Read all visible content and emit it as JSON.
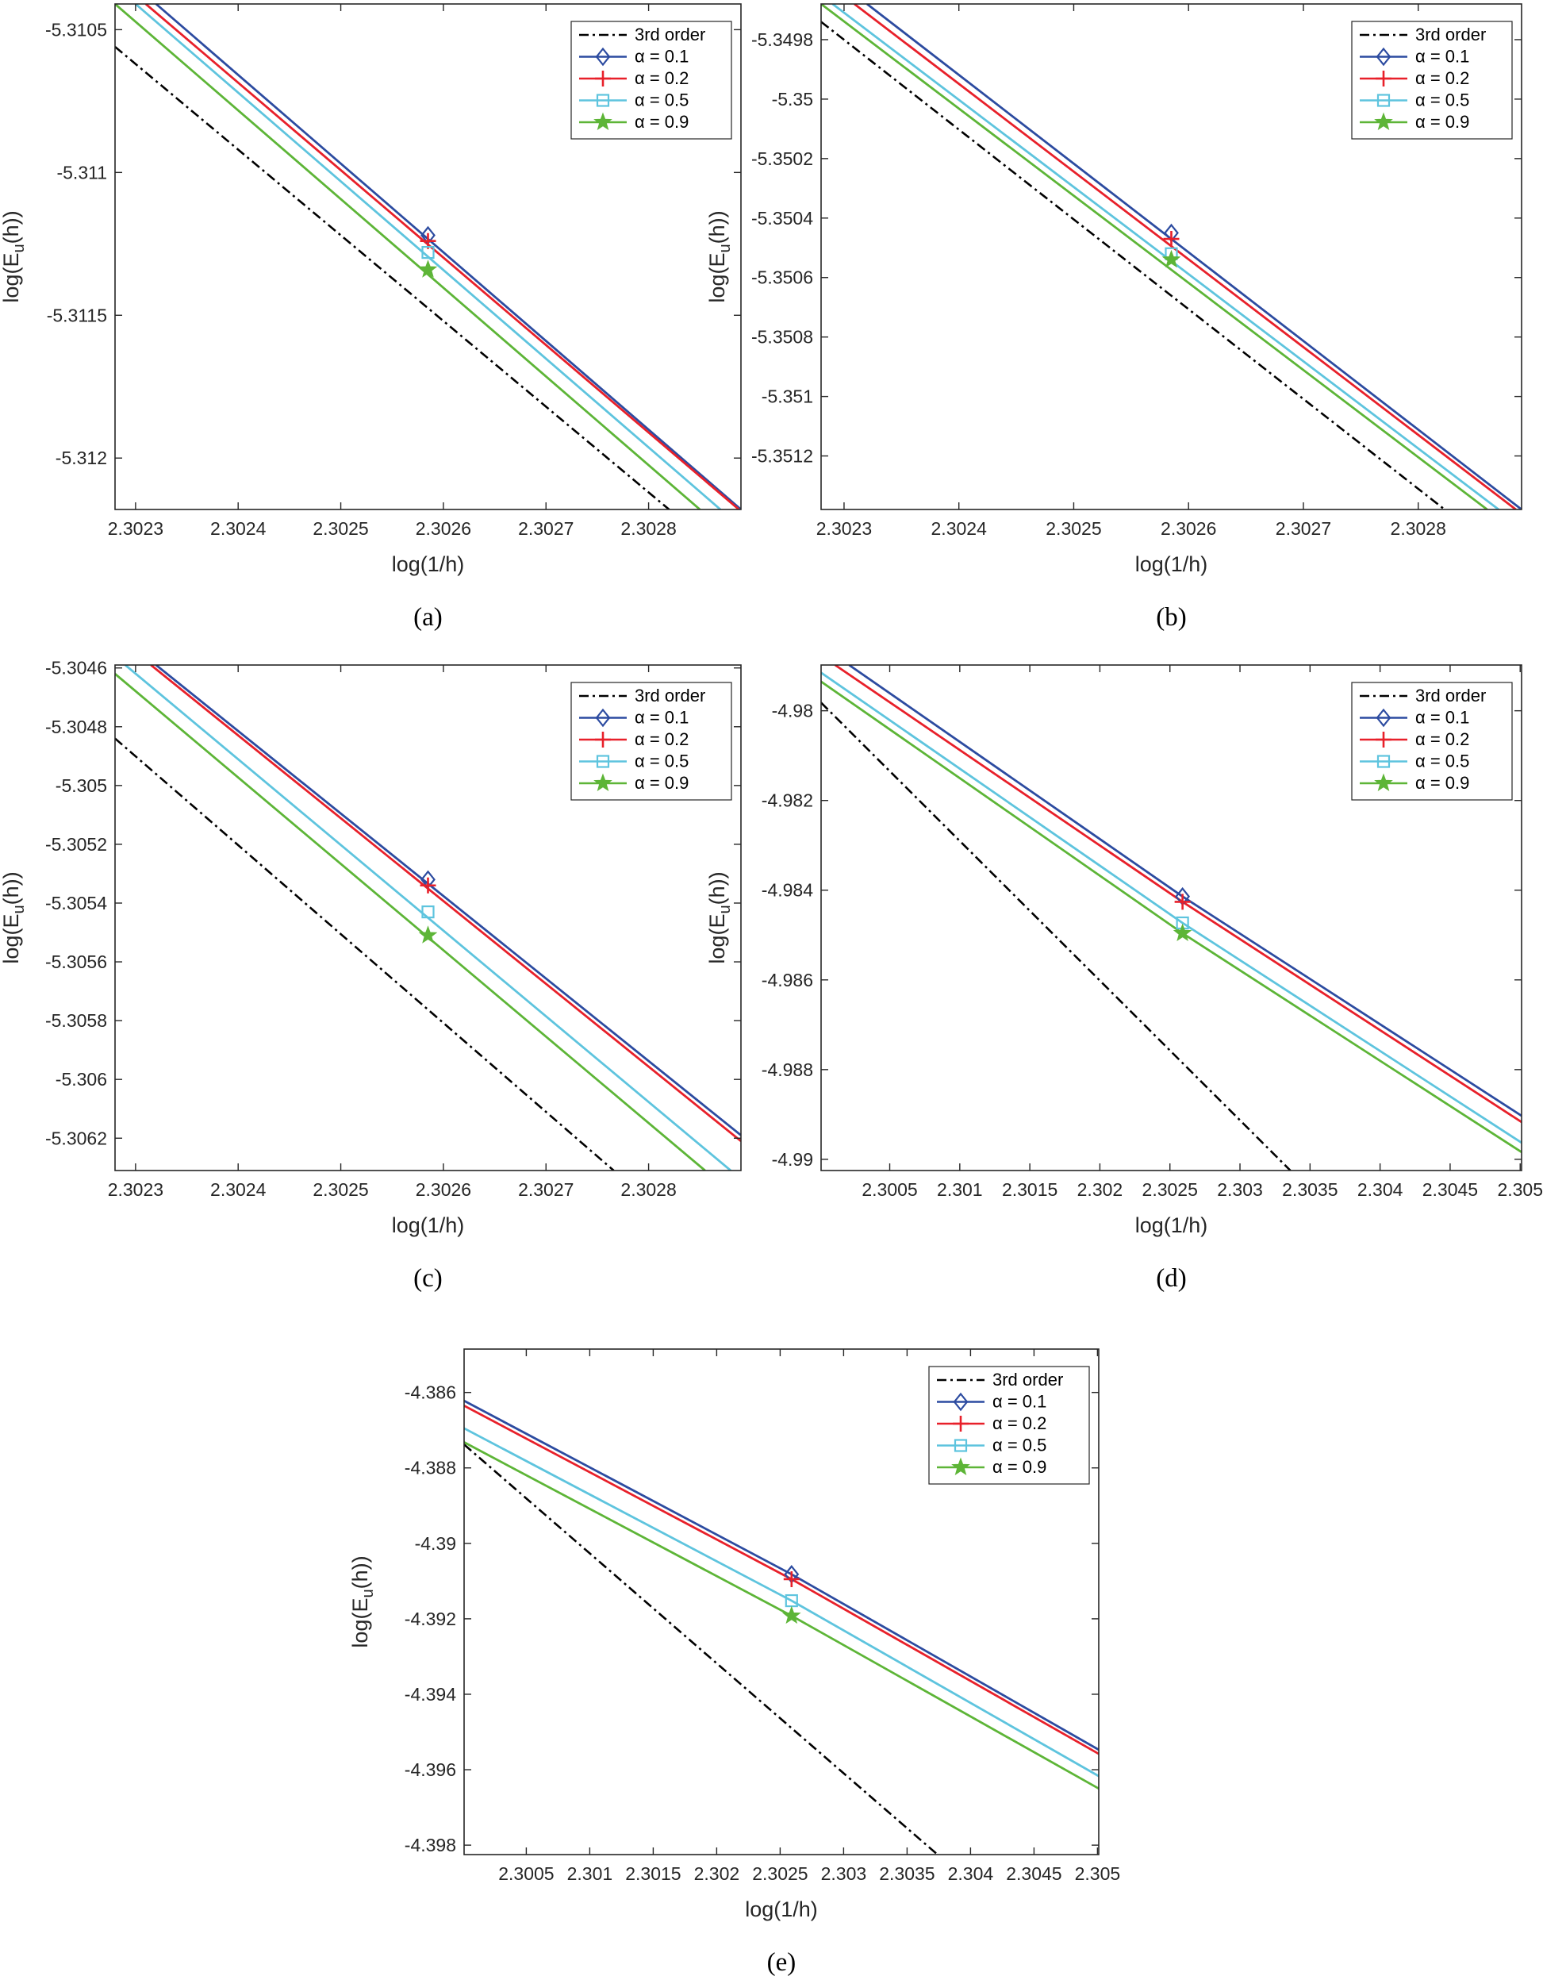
{
  "figure": {
    "legend_entries": [
      {
        "label": "3rd order",
        "color": "#000000",
        "dash": "12,5,3,5",
        "marker": "none"
      },
      {
        "label": "α = 0.1",
        "color": "#2c4ba0",
        "dash": "",
        "marker": "diamond"
      },
      {
        "label": "α = 0.2",
        "color": "#e8202a",
        "dash": "",
        "marker": "plus"
      },
      {
        "label": "α = 0.5",
        "color": "#5ec4de",
        "dash": "",
        "marker": "square"
      },
      {
        "label": "α = 0.9",
        "color": "#5db537",
        "dash": "",
        "marker": "star"
      }
    ]
  },
  "chart_data": [
    {
      "id": "a",
      "caption": "(a)",
      "type": "line",
      "xlabel": "log(1/h)",
      "ylabel": "log(E_u(h))",
      "ylabel_main": "log(E",
      "ylabel_sub": "u",
      "ylabel_end": "(h))",
      "xlim": [
        2.30228,
        2.30289
      ],
      "ylim": [
        -5.31218,
        -5.31041
      ],
      "xticks": [
        2.3023,
        2.3024,
        2.3025,
        2.3026,
        2.3027,
        2.3028
      ],
      "xtick_labels": [
        "2.3023",
        "2.3024",
        "2.3025",
        "2.3026",
        "2.3027",
        "2.3028"
      ],
      "yticks": [
        -5.3105,
        -5.311,
        -5.3115,
        -5.312
      ],
      "ytick_labels": [
        "-5.3105",
        "-5.311",
        "-5.3115",
        "-5.312"
      ],
      "legend_position": "top-right",
      "series": [
        {
          "name": "3rd order",
          "x": [
            2.30228,
            2.30282
          ],
          "y": [
            -5.31056,
            -5.31218
          ]
        },
        {
          "name": "α = 0.1",
          "x": [
            2.30232,
            2.30289
          ],
          "y": [
            -5.31041,
            -5.31218
          ],
          "marker_x": 2.302585,
          "marker_y": -5.31122
        },
        {
          "name": "α = 0.2",
          "x": [
            2.30231,
            2.302888
          ],
          "y": [
            -5.31041,
            -5.31218
          ],
          "marker_x": 2.302585,
          "marker_y": -5.31124
        },
        {
          "name": "α = 0.5",
          "x": [
            2.3023,
            2.30287
          ],
          "y": [
            -5.31041,
            -5.31218
          ],
          "marker_x": 2.302585,
          "marker_y": -5.31128
        },
        {
          "name": "α = 0.9",
          "x": [
            2.30228,
            2.30285
          ],
          "y": [
            -5.31041,
            -5.31218
          ],
          "marker_x": 2.302585,
          "marker_y": -5.31134
        }
      ]
    },
    {
      "id": "b",
      "caption": "(b)",
      "type": "line",
      "xlabel": "log(1/h)",
      "ylabel": "log(E_u(h))",
      "ylabel_main": "log(E",
      "ylabel_sub": "u",
      "ylabel_end": "(h))",
      "xlim": [
        2.30228,
        2.30289
      ],
      "ylim": [
        -5.35138,
        -5.34968
      ],
      "xticks": [
        2.3023,
        2.3024,
        2.3025,
        2.3026,
        2.3027,
        2.3028
      ],
      "xtick_labels": [
        "2.3023",
        "2.3024",
        "2.3025",
        "2.3026",
        "2.3027",
        "2.3028"
      ],
      "yticks": [
        -5.3498,
        -5.35,
        -5.3502,
        -5.3504,
        -5.3506,
        -5.3508,
        -5.351,
        -5.3512
      ],
      "ytick_labels": [
        "-5.3498",
        "-5.35",
        "-5.3502",
        "-5.3504",
        "-5.3506",
        "-5.3508",
        "-5.351",
        "-5.3512"
      ],
      "legend_position": "top-right",
      "series": [
        {
          "name": "3rd order",
          "x": [
            2.30228,
            2.302823
          ],
          "y": [
            -5.34974,
            -5.35138
          ]
        },
        {
          "name": "α = 0.1",
          "x": [
            2.30232,
            2.30289
          ],
          "y": [
            -5.34968,
            -5.35138
          ],
          "marker_x": 2.302585,
          "marker_y": -5.35045
        },
        {
          "name": "α = 0.2",
          "x": [
            2.302309,
            2.302885
          ],
          "y": [
            -5.34968,
            -5.35138
          ],
          "marker_x": 2.302585,
          "marker_y": -5.35047
        },
        {
          "name": "α = 0.5",
          "x": [
            2.30229,
            2.30287
          ],
          "y": [
            -5.34968,
            -5.35138
          ],
          "marker_x": 2.302585,
          "marker_y": -5.35052
        },
        {
          "name": "α = 0.9",
          "x": [
            2.30228,
            2.30286
          ],
          "y": [
            -5.34968,
            -5.35138
          ],
          "marker_x": 2.302585,
          "marker_y": -5.35054
        }
      ]
    },
    {
      "id": "c",
      "caption": "(c)",
      "type": "line",
      "xlabel": "log(1/h)",
      "ylabel": "log(E_u(h))",
      "ylabel_main": "log(E",
      "ylabel_sub": "u",
      "ylabel_end": "(h))",
      "xlim": [
        2.30228,
        2.30289
      ],
      "ylim": [
        -5.30631,
        -5.30459
      ],
      "xticks": [
        2.3023,
        2.3024,
        2.3025,
        2.3026,
        2.3027,
        2.3028
      ],
      "xtick_labels": [
        "2.3023",
        "2.3024",
        "2.3025",
        "2.3026",
        "2.3027",
        "2.3028"
      ],
      "yticks": [
        -5.3046,
        -5.3048,
        -5.305,
        -5.3052,
        -5.3054,
        -5.3056,
        -5.3058,
        -5.306,
        -5.3062
      ],
      "ytick_labels": [
        "-5.3046",
        "-5.3048",
        "-5.305",
        "-5.3052",
        "-5.3054",
        "-5.3056",
        "-5.3058",
        "-5.306",
        "-5.3062"
      ],
      "legend_position": "top-right",
      "series": [
        {
          "name": "3rd order",
          "x": [
            2.30228,
            2.302766
          ],
          "y": [
            -5.30484,
            -5.30631
          ]
        },
        {
          "name": "α = 0.1",
          "x": [
            2.30232,
            2.30289
          ],
          "y": [
            -5.30459,
            -5.30619
          ],
          "marker_x": 2.302585,
          "marker_y": -5.30532
        },
        {
          "name": "α = 0.2",
          "x": [
            2.302315,
            2.30289
          ],
          "y": [
            -5.30459,
            -5.30621
          ],
          "marker_x": 2.302585,
          "marker_y": -5.30534
        },
        {
          "name": "α = 0.5",
          "x": [
            2.30229,
            2.30288
          ],
          "y": [
            -5.30459,
            -5.30631
          ],
          "marker_x": 2.302585,
          "marker_y": -5.30543
        },
        {
          "name": "α = 0.9",
          "x": [
            2.30228,
            2.302855
          ],
          "y": [
            -5.30462,
            -5.30631
          ],
          "marker_x": 2.302585,
          "marker_y": -5.30551
        }
      ]
    },
    {
      "id": "d",
      "caption": "(d)",
      "type": "line",
      "xlabel": "log(1/h)",
      "ylabel": "log(E_u(h))",
      "ylabel_main": "log(E",
      "ylabel_sub": "u",
      "ylabel_end": "(h))",
      "xlim": [
        2.30001,
        2.30501
      ],
      "ylim": [
        -4.99025,
        -4.97898
      ],
      "xticks": [
        2.3005,
        2.301,
        2.3015,
        2.302,
        2.3025,
        2.303,
        2.3035,
        2.304,
        2.3045,
        2.305
      ],
      "xtick_labels": [
        "2.3005",
        "2.301",
        "2.3015",
        "2.302",
        "2.3025",
        "2.303",
        "2.3035",
        "2.304",
        "2.3045",
        "2.305"
      ],
      "yticks": [
        -4.98,
        -4.982,
        -4.984,
        -4.986,
        -4.988,
        -4.99
      ],
      "ytick_labels": [
        "-4.98",
        "-4.982",
        "-4.984",
        "-4.986",
        "-4.988",
        "-4.99"
      ],
      "legend_position": "top-right",
      "series": [
        {
          "name": "3rd order",
          "x": [
            2.30001,
            2.30336
          ],
          "y": [
            -4.97982,
            -4.99025
          ]
        },
        {
          "name": "α = 0.1",
          "x": [
            2.30021,
            2.30259,
            2.30501
          ],
          "y": [
            -4.97898,
            -4.98414,
            -4.98903
          ],
          "marker_x": 2.30259,
          "marker_y": -4.98414
        },
        {
          "name": "α = 0.2",
          "x": [
            2.30011,
            2.30259,
            2.30501
          ],
          "y": [
            -4.97898,
            -4.98426,
            -4.98917
          ],
          "marker_x": 2.30259,
          "marker_y": -4.98426
        },
        {
          "name": "α = 0.5",
          "x": [
            2.30001,
            2.30259,
            2.30501
          ],
          "y": [
            -4.97915,
            -4.98473,
            -4.98963
          ],
          "marker_x": 2.30259,
          "marker_y": -4.98473
        },
        {
          "name": "α = 0.9",
          "x": [
            2.30001,
            2.30259,
            2.30501
          ],
          "y": [
            -4.97935,
            -4.98496,
            -4.98984
          ],
          "marker_x": 2.30259,
          "marker_y": -4.98496
        }
      ]
    },
    {
      "id": "e",
      "caption": "(e)",
      "type": "line",
      "xlabel": "log(1/h)",
      "ylabel": "log(E_u(h))",
      "ylabel_main": "log(E",
      "ylabel_sub": "u",
      "ylabel_end": "(h))",
      "xlim": [
        2.30001,
        2.30501
      ],
      "ylim": [
        -4.39825,
        -4.38485
      ],
      "xticks": [
        2.3005,
        2.301,
        2.3015,
        2.302,
        2.3025,
        2.303,
        2.3035,
        2.304,
        2.3045,
        2.305
      ],
      "xtick_labels": [
        "2.3005",
        "2.301",
        "2.3015",
        "2.302",
        "2.3025",
        "2.303",
        "2.3035",
        "2.304",
        "2.3045",
        "2.305"
      ],
      "yticks": [
        -4.386,
        -4.388,
        -4.39,
        -4.392,
        -4.394,
        -4.396,
        -4.398
      ],
      "ytick_labels": [
        "-4.386",
        "-4.388",
        "-4.39",
        "-4.392",
        "-4.394",
        "-4.396",
        "-4.398"
      ],
      "legend_position": "top-right",
      "series": [
        {
          "name": "3rd order",
          "x": [
            2.30001,
            2.30374
          ],
          "y": [
            -4.38738,
            -4.39825
          ]
        },
        {
          "name": "α = 0.1",
          "x": [
            2.30001,
            2.30259,
            2.30501
          ],
          "y": [
            -4.38622,
            -4.39082,
            -4.39547
          ],
          "marker_x": 2.30259,
          "marker_y": -4.39082
        },
        {
          "name": "α = 0.2",
          "x": [
            2.30001,
            2.30259,
            2.30501
          ],
          "y": [
            -4.38635,
            -4.39095,
            -4.39558
          ],
          "marker_x": 2.30259,
          "marker_y": -4.39095
        },
        {
          "name": "α = 0.5",
          "x": [
            2.30001,
            2.30259,
            2.30501
          ],
          "y": [
            -4.38695,
            -4.39152,
            -4.39617
          ],
          "marker_x": 2.30259,
          "marker_y": -4.39152
        },
        {
          "name": "α = 0.9",
          "x": [
            2.30001,
            2.30259,
            2.30501
          ],
          "y": [
            -4.38732,
            -4.39192,
            -4.3965
          ],
          "marker_x": 2.30259,
          "marker_y": -4.39192
        }
      ]
    }
  ]
}
